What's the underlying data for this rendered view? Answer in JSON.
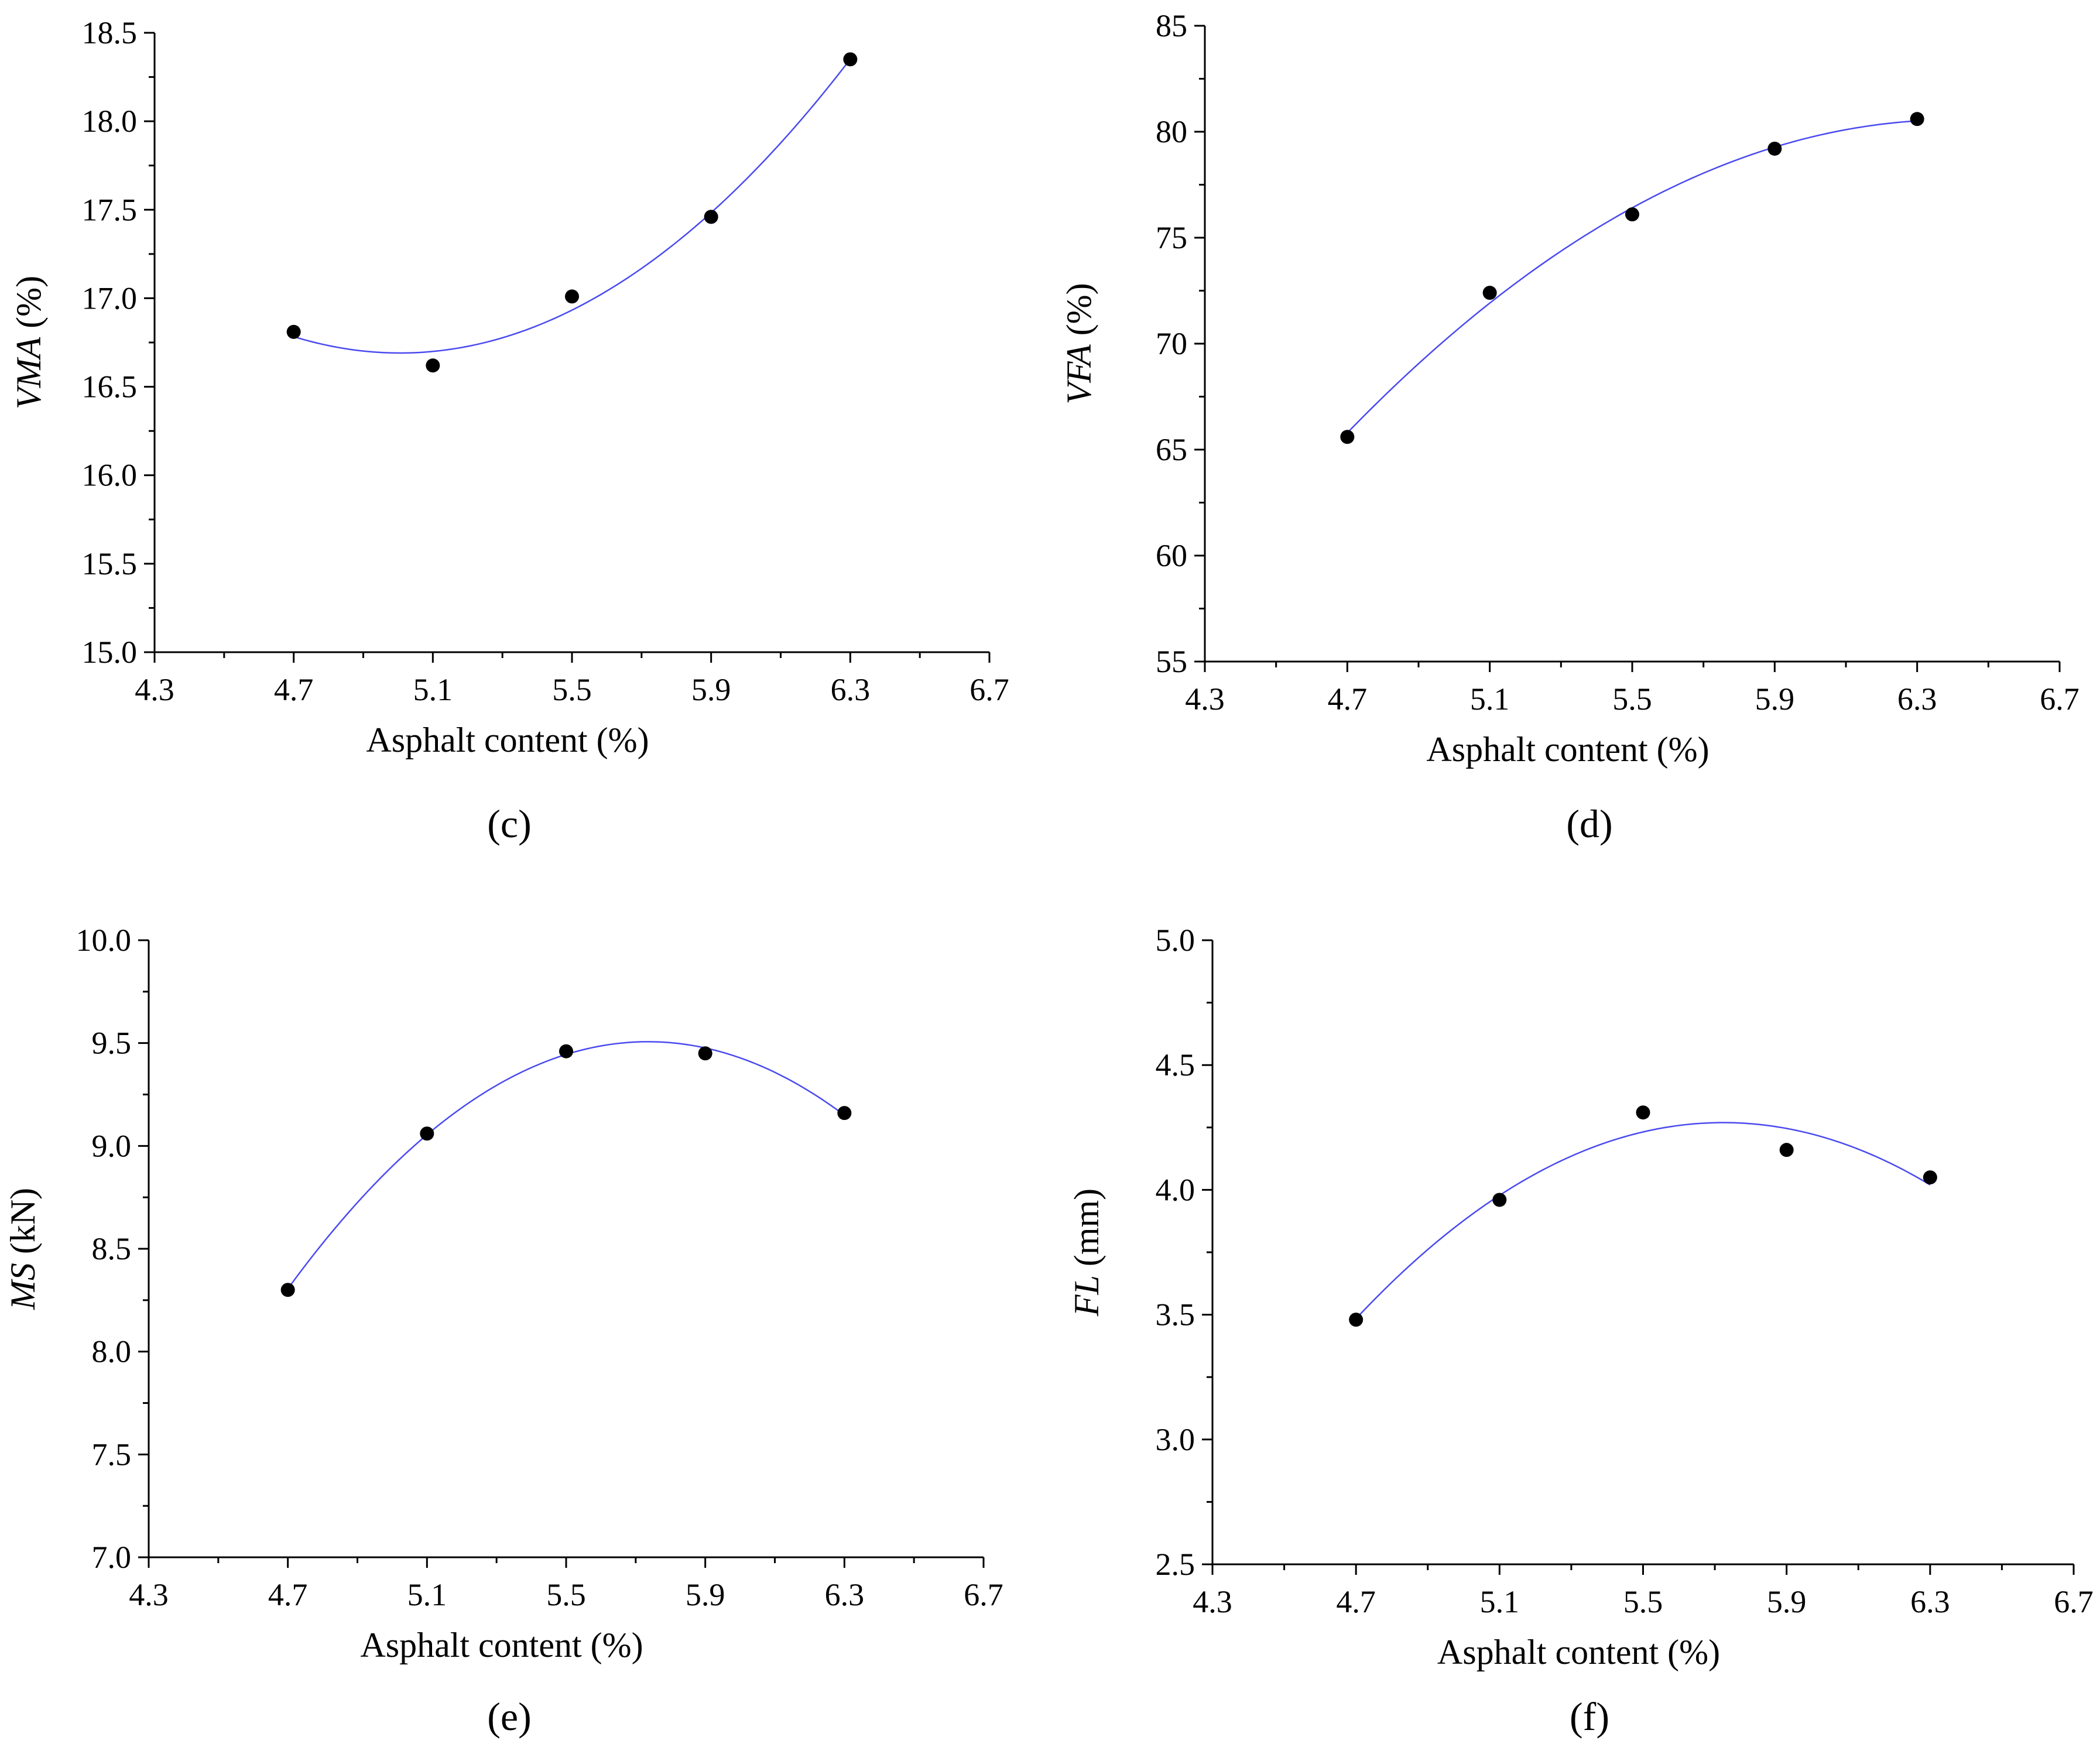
{
  "chart_data": [
    {
      "type": "scatter",
      "panel": "(c)",
      "xlabel": "Asphalt content (%)",
      "ylabel_italic": "VMA",
      "ylabel_unit": " (%)",
      "xlim": [
        4.3,
        6.7
      ],
      "ylim": [
        15.0,
        18.5
      ],
      "xticks": [
        "4.3",
        "4.7",
        "5.1",
        "5.5",
        "5.9",
        "6.3",
        "6.7"
      ],
      "yticks": [
        "15.0",
        "15.5",
        "16.0",
        "16.5",
        "17.0",
        "17.5",
        "18.0",
        "18.5"
      ],
      "x": [
        4.7,
        5.1,
        5.5,
        5.9,
        6.3
      ],
      "y": [
        16.81,
        16.62,
        17.01,
        17.46,
        18.35
      ],
      "fit": "quadratic",
      "fit_color": "#4a4af0",
      "marker_color": "#000000"
    },
    {
      "type": "scatter",
      "panel": "(d)",
      "xlabel": "Asphalt content (%)",
      "ylabel_italic": "VFA",
      "ylabel_unit": " (%)",
      "xlim": [
        4.3,
        6.7
      ],
      "ylim": [
        55,
        85
      ],
      "xticks": [
        "4.3",
        "4.7",
        "5.1",
        "5.5",
        "5.9",
        "6.3",
        "6.7"
      ],
      "yticks": [
        "55",
        "60",
        "65",
        "70",
        "75",
        "80",
        "85"
      ],
      "x": [
        4.7,
        5.1,
        5.5,
        5.9,
        6.3
      ],
      "y": [
        65.6,
        72.4,
        76.1,
        79.2,
        80.6
      ],
      "fit": "quadratic",
      "fit_color": "#4a4af0",
      "marker_color": "#000000"
    },
    {
      "type": "scatter",
      "panel": "(e)",
      "xlabel": "Asphalt content (%)",
      "ylabel_italic": "MS",
      "ylabel_unit": " (kN)",
      "xlim": [
        4.3,
        6.7
      ],
      "ylim": [
        7.0,
        10.0
      ],
      "xticks": [
        "4.3",
        "4.7",
        "5.1",
        "5.5",
        "5.9",
        "6.3",
        "6.7"
      ],
      "yticks": [
        "7.0",
        "7.5",
        "8.0",
        "8.5",
        "9.0",
        "9.5",
        "10.0"
      ],
      "x": [
        4.7,
        5.1,
        5.5,
        5.9,
        6.3
      ],
      "y": [
        8.3,
        9.06,
        9.46,
        9.45,
        9.16
      ],
      "fit": "quadratic",
      "fit_color": "#4a4af0",
      "marker_color": "#000000"
    },
    {
      "type": "scatter",
      "panel": "(f)",
      "xlabel": "Asphalt content (%)",
      "ylabel_italic": "FL",
      "ylabel_unit": " (mm)",
      "xlim": [
        4.3,
        6.7
      ],
      "ylim": [
        2.5,
        5.0
      ],
      "xticks": [
        "4.3",
        "4.7",
        "5.1",
        "5.5",
        "5.9",
        "6.3",
        "6.7"
      ],
      "yticks": [
        "2.5",
        "3.0",
        "3.5",
        "4.0",
        "4.5",
        "5.0"
      ],
      "x": [
        4.7,
        5.1,
        5.5,
        5.9,
        6.3
      ],
      "y": [
        3.48,
        3.96,
        4.31,
        4.16,
        4.05
      ],
      "fit": "quadratic",
      "fit_color": "#4a4af0",
      "marker_color": "#000000"
    }
  ]
}
